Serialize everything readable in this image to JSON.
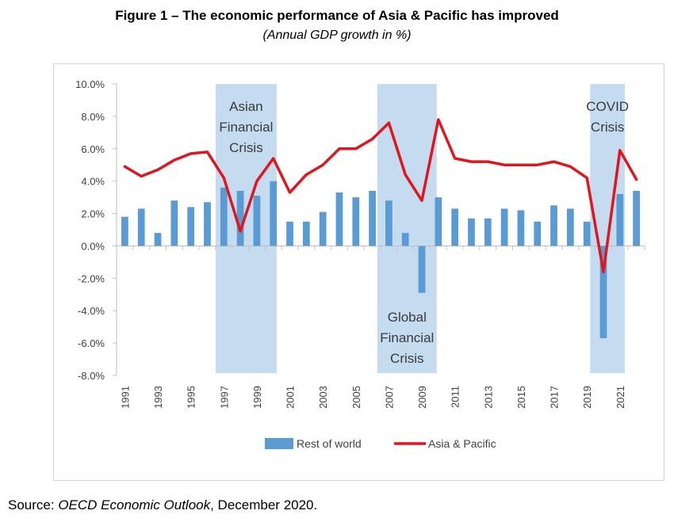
{
  "title": "Figure 1 – The economic performance of Asia & Pacific has improved",
  "subtitle": "(Annual GDP growth in %)",
  "source": {
    "prefix": "Source: ",
    "publication": "OECD Economic Outlook",
    "suffix": ", December 2020."
  },
  "chart_data": {
    "type": "bar",
    "x": [
      1991,
      1992,
      1993,
      1994,
      1995,
      1996,
      1997,
      1998,
      1999,
      2000,
      2001,
      2002,
      2003,
      2004,
      2005,
      2006,
      2007,
      2008,
      2009,
      2010,
      2011,
      2012,
      2013,
      2014,
      2015,
      2016,
      2017,
      2018,
      2019,
      2020,
      2021,
      2022
    ],
    "x_tick_labels": [
      "1991",
      "1993",
      "1995",
      "1997",
      "1999",
      "2001",
      "2003",
      "2005",
      "2007",
      "2009",
      "2011",
      "2013",
      "2015",
      "2017",
      "2019",
      "2021"
    ],
    "y_tick_labels": [
      "10.0%",
      "8.0%",
      "6.0%",
      "4.0%",
      "2.0%",
      "0.0%",
      "-2.0%",
      "-4.0%",
      "-6.0%",
      "-8.0%"
    ],
    "ylim": [
      -8,
      10
    ],
    "grid": false,
    "legend_position": "bottom",
    "series": [
      {
        "name": "Rest of world",
        "type": "bar",
        "color": "#5b9bd5",
        "values": [
          1.8,
          2.3,
          0.8,
          2.8,
          2.4,
          2.7,
          3.6,
          3.4,
          3.1,
          4.0,
          1.5,
          1.5,
          2.1,
          3.3,
          3.0,
          3.4,
          2.8,
          0.8,
          -2.9,
          3.0,
          2.3,
          1.7,
          1.7,
          2.3,
          2.2,
          1.5,
          2.5,
          2.3,
          1.5,
          -5.7,
          3.2,
          3.4
        ]
      },
      {
        "name": "Asia & Pacific",
        "type": "line",
        "color": "#e0161e",
        "values": [
          4.9,
          4.3,
          4.7,
          5.3,
          5.7,
          5.8,
          4.2,
          0.9,
          4.0,
          5.4,
          3.3,
          4.4,
          5.0,
          6.0,
          6.0,
          6.6,
          7.6,
          4.4,
          2.8,
          7.8,
          5.4,
          5.2,
          5.2,
          5.0,
          5.0,
          5.0,
          5.2,
          4.9,
          4.2,
          -1.6,
          5.9,
          4.1
        ]
      }
    ],
    "shaded_periods": [
      {
        "label_lines": [
          "Asian",
          "Financial",
          "Crisis"
        ],
        "from": 1996.5,
        "to": 2000.2,
        "label_position": "top"
      },
      {
        "label_lines": [
          "Global",
          "Financial",
          "Crisis"
        ],
        "from": 2006.3,
        "to": 2009.9,
        "label_position": "bottom"
      },
      {
        "label_lines": [
          "COVID",
          "Crisis"
        ],
        "from": 2019.2,
        "to": 2021.3,
        "label_position": "top"
      }
    ],
    "colors": {
      "shading": "#c5dbef",
      "axis": "#bfbfbf",
      "text": "#404040"
    }
  }
}
